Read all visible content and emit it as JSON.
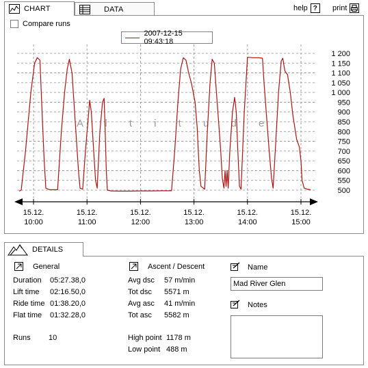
{
  "tabs": {
    "chart_label": "CHART",
    "data_label": "DATA"
  },
  "toolbar": {
    "help_label": "help",
    "print_label": "print"
  },
  "compare": {
    "label": "Compare runs",
    "checked": false
  },
  "legend": {
    "label": "2007-12-15 09:43:18"
  },
  "chart_data": {
    "type": "line",
    "title": "",
    "watermark": "A l t i t u d e",
    "ylabel": "",
    "xlabel": "",
    "ylim": [
      480,
      1220
    ],
    "y_ticks": [
      "1 200",
      "1 150",
      "1 100",
      "1 050",
      "1 000",
      "950",
      "900",
      "850",
      "800",
      "750",
      "700",
      "650",
      "600",
      "550",
      "500"
    ],
    "y_tick_values": [
      1200,
      1150,
      1100,
      1050,
      1000,
      950,
      900,
      850,
      800,
      750,
      700,
      650,
      600,
      550,
      500
    ],
    "x_ticks": [
      {
        "line1": "15.12.",
        "line2": "10:00",
        "t": 10.0
      },
      {
        "line1": "15.12.",
        "line2": "11:00",
        "t": 11.0
      },
      {
        "line1": "15.12.",
        "line2": "12:00",
        "t": 12.0
      },
      {
        "line1": "15.12.",
        "line2": "13:00",
        "t": 13.0
      },
      {
        "line1": "15.12.",
        "line2": "14:00",
        "t": 14.0
      },
      {
        "line1": "15.12.",
        "line2": "15:00",
        "t": 15.0
      }
    ],
    "xlim": [
      9.72,
      15.25
    ],
    "grid": true,
    "series": [
      {
        "color": "#b01010",
        "points": [
          [
            9.73,
            495
          ],
          [
            9.77,
            500
          ],
          [
            9.85,
            700
          ],
          [
            9.95,
            1000
          ],
          [
            10.02,
            1150
          ],
          [
            10.07,
            1178
          ],
          [
            10.12,
            1165
          ],
          [
            10.16,
            900
          ],
          [
            10.2,
            650
          ],
          [
            10.23,
            510
          ],
          [
            10.3,
            502
          ],
          [
            10.38,
            502
          ],
          [
            10.45,
            502
          ],
          [
            10.52,
            800
          ],
          [
            10.58,
            1000
          ],
          [
            10.63,
            1120
          ],
          [
            10.67,
            1170
          ],
          [
            10.72,
            1100
          ],
          [
            10.78,
            850
          ],
          [
            10.84,
            600
          ],
          [
            10.87,
            510
          ],
          [
            10.92,
            505
          ],
          [
            10.97,
            700
          ],
          [
            11.02,
            860
          ],
          [
            11.05,
            960
          ],
          [
            11.08,
            900
          ],
          [
            11.12,
            720
          ],
          [
            11.16,
            550
          ],
          [
            11.19,
            510
          ],
          [
            11.24,
            800
          ],
          [
            11.29,
            950
          ],
          [
            11.32,
            970
          ],
          [
            11.34,
            800
          ],
          [
            11.36,
            600
          ],
          [
            11.38,
            500
          ],
          [
            11.45,
            496
          ],
          [
            11.6,
            495
          ],
          [
            11.8,
            495
          ],
          [
            12.0,
            496
          ],
          [
            12.2,
            496
          ],
          [
            12.4,
            497
          ],
          [
            12.58,
            497
          ],
          [
            12.64,
            700
          ],
          [
            12.7,
            950
          ],
          [
            12.75,
            1120
          ],
          [
            12.8,
            1178
          ],
          [
            12.85,
            1165
          ],
          [
            12.9,
            1100
          ],
          [
            12.95,
            1050
          ],
          [
            13.02,
            950
          ],
          [
            13.06,
            820
          ],
          [
            13.08,
            700
          ],
          [
            13.1,
            600
          ],
          [
            13.13,
            520
          ],
          [
            13.2,
            505
          ],
          [
            13.25,
            800
          ],
          [
            13.3,
            1050
          ],
          [
            13.34,
            1170
          ],
          [
            13.38,
            1150
          ],
          [
            13.42,
            1000
          ],
          [
            13.46,
            850
          ],
          [
            13.5,
            700
          ],
          [
            13.53,
            560
          ],
          [
            13.56,
            510
          ],
          [
            13.58,
            600
          ],
          [
            13.6,
            520
          ],
          [
            13.62,
            600
          ],
          [
            13.64,
            510
          ],
          [
            13.67,
            700
          ],
          [
            13.72,
            900
          ],
          [
            13.76,
            975
          ],
          [
            13.79,
            900
          ],
          [
            13.82,
            700
          ],
          [
            13.85,
            520
          ],
          [
            13.88,
            505
          ],
          [
            13.94,
            900
          ],
          [
            14.0,
            1180
          ],
          [
            14.1,
            1178
          ],
          [
            14.2,
            1178
          ],
          [
            14.28,
            1175
          ],
          [
            14.31,
            1050
          ],
          [
            14.35,
            900
          ],
          [
            14.4,
            720
          ],
          [
            14.45,
            560
          ],
          [
            14.48,
            510
          ],
          [
            14.53,
            750
          ],
          [
            14.58,
            1000
          ],
          [
            14.63,
            1160
          ],
          [
            14.66,
            1175
          ],
          [
            14.7,
            1110
          ],
          [
            14.75,
            1090
          ],
          [
            14.8,
            1000
          ],
          [
            14.85,
            880
          ],
          [
            14.92,
            760
          ],
          [
            14.97,
            720
          ],
          [
            15.0,
            650
          ],
          [
            15.02,
            550
          ],
          [
            15.06,
            510
          ],
          [
            15.12,
            505
          ],
          [
            15.18,
            502
          ]
        ]
      }
    ]
  },
  "details": {
    "tab_label": "DETAILS",
    "general": {
      "title": "General",
      "rows": [
        {
          "key": "Duration",
          "value": "05:27.38,0"
        },
        {
          "key": "Lift time",
          "value": "02:16.50,0"
        },
        {
          "key": "Ride time",
          "value": "01:38.20,0"
        },
        {
          "key": "Flat time",
          "value": "01:32.28,0"
        }
      ],
      "runs_key": "Runs",
      "runs_value": "10"
    },
    "ascent": {
      "title": "Ascent / Descent",
      "rows": [
        {
          "key": "Avg dsc",
          "value": "57 m/min"
        },
        {
          "key": "Tot dsc",
          "value": "5571 m"
        },
        {
          "key": "Avg asc",
          "value": "41 m/min"
        },
        {
          "key": "Tot asc",
          "value": "5582 m"
        }
      ],
      "high_key": "High point",
      "high_value": "1178 m",
      "low_key": "Low point",
      "low_value": "488 m"
    },
    "name": {
      "title": "Name",
      "value": "Mad River Glen"
    },
    "notes": {
      "title": "Notes",
      "value": ""
    }
  }
}
